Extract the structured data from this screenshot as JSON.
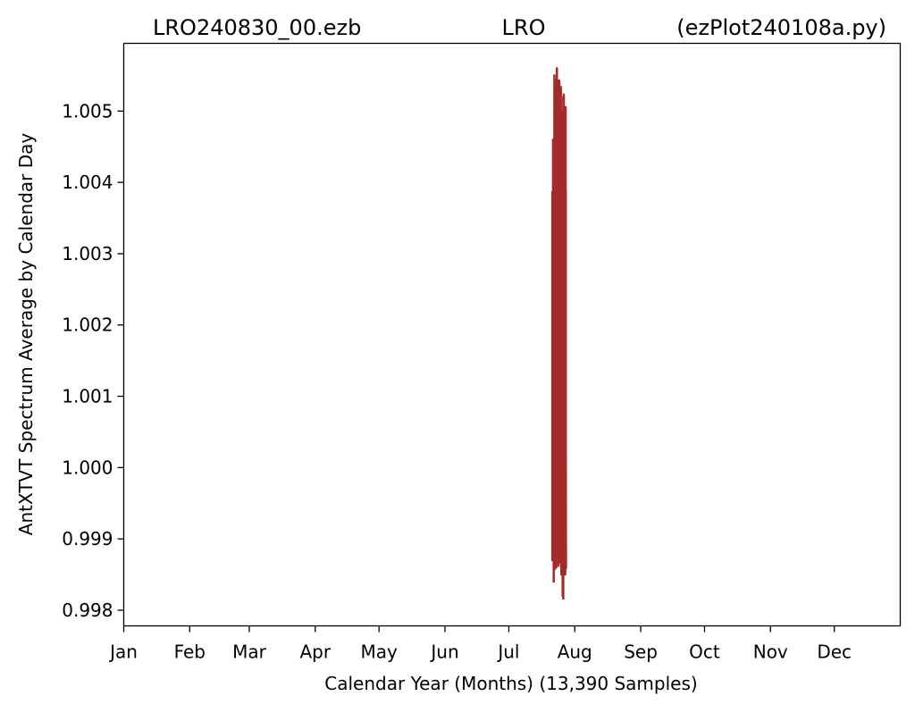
{
  "chart_data": {
    "type": "line",
    "title": {
      "left": "LRO240830_00.ezb",
      "center": "LRO",
      "right": "(ezPlot240108a.py)"
    },
    "xlabel": "Calendar Year (Months) (13,390 Samples)",
    "ylabel": "AntXTVT Spectrum Average by Calendar Day",
    "x_unit": "day of year",
    "xlim": [
      1,
      366
    ],
    "ylim": [
      0.99778,
      1.00595
    ],
    "x_ticks": [
      {
        "label": "Jan",
        "value": 1
      },
      {
        "label": "Feb",
        "value": 32
      },
      {
        "label": "Mar",
        "value": 60
      },
      {
        "label": "Apr",
        "value": 91
      },
      {
        "label": "May",
        "value": 121
      },
      {
        "label": "Jun",
        "value": 152
      },
      {
        "label": "Jul",
        "value": 182
      },
      {
        "label": "Aug",
        "value": 213
      },
      {
        "label": "Sep",
        "value": 244
      },
      {
        "label": "Oct",
        "value": 274
      },
      {
        "label": "Nov",
        "value": 305
      },
      {
        "label": "Dec",
        "value": 335
      }
    ],
    "y_ticks": [
      {
        "label": "0.998",
        "value": 0.998
      },
      {
        "label": "0.999",
        "value": 0.999
      },
      {
        "label": "1.000",
        "value": 1.0
      },
      {
        "label": "1.001",
        "value": 1.001
      },
      {
        "label": "1.002",
        "value": 1.002
      },
      {
        "label": "1.003",
        "value": 1.003
      },
      {
        "label": "1.004",
        "value": 1.004
      },
      {
        "label": "1.005",
        "value": 1.005
      }
    ],
    "grid": false,
    "legend": "none",
    "series": [
      {
        "color": "#a52a2a",
        "x_range": [
          202.5,
          208.8
        ],
        "y_range": [
          0.99815,
          1.00558
        ],
        "x": [
          202.5,
          202.8,
          203.1,
          203.4,
          203.7,
          204.0,
          204.3,
          204.6,
          204.9,
          205.2,
          205.5,
          205.8,
          206.1,
          206.4,
          206.7,
          207.0,
          207.3,
          207.6,
          207.9,
          208.2,
          208.5,
          208.8
        ],
        "y": [
          0.9987,
          1.0046,
          0.9984,
          1.0055,
          0.999,
          1.0053,
          0.9986,
          1.0056,
          0.9993,
          1.0051,
          0.9987,
          1.0054,
          0.999,
          1.0049,
          0.9985,
          1.005,
          0.9982,
          1.0052,
          0.9987,
          1.0048,
          0.9985,
          1.0002
        ]
      }
    ]
  }
}
